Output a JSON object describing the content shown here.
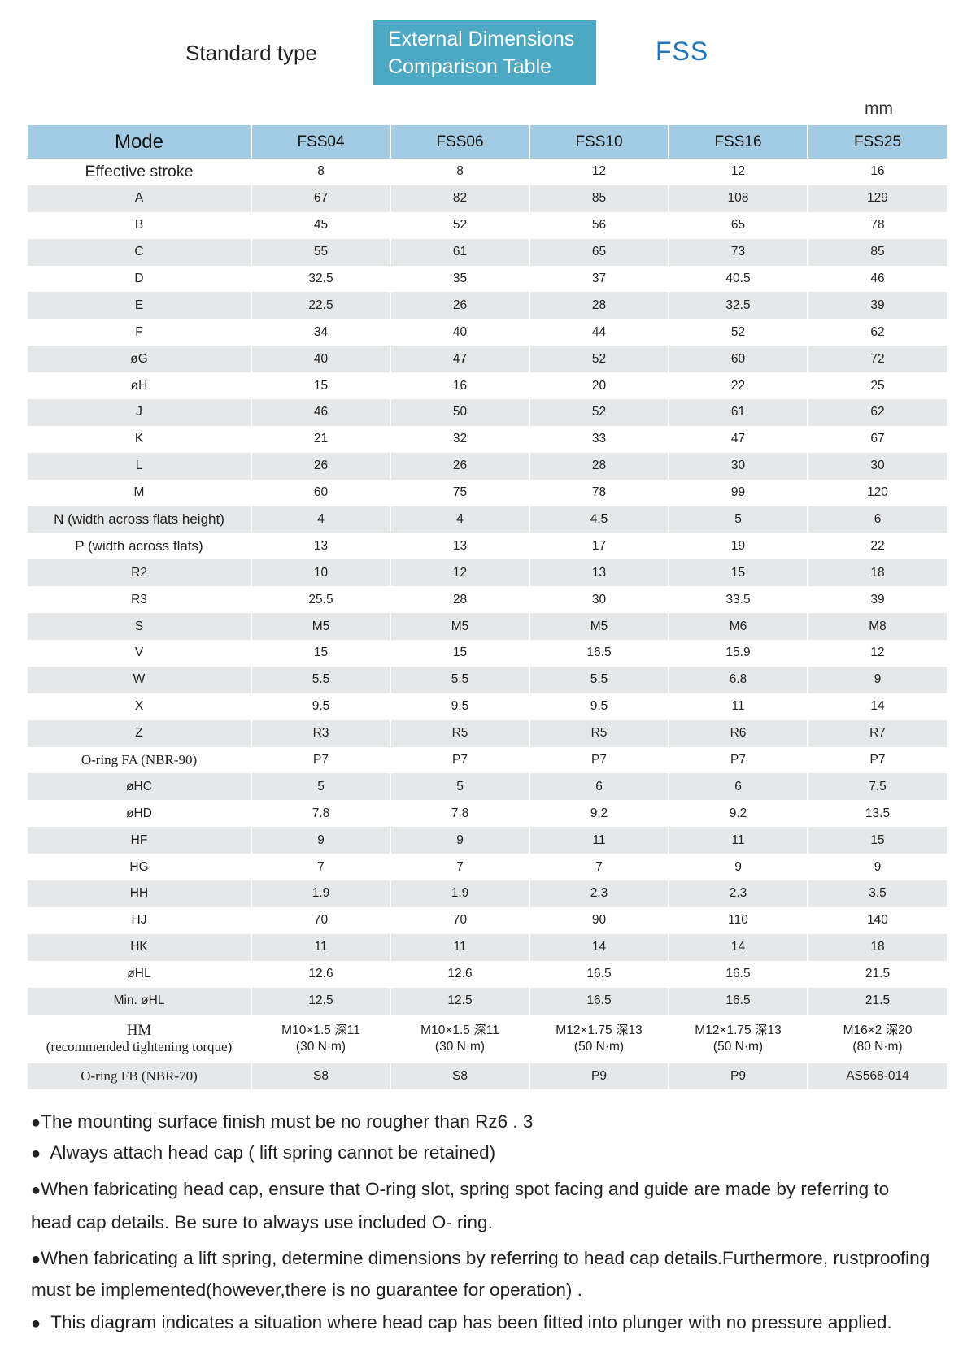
{
  "header": {
    "standard_type": "Standard type",
    "title_line1": "External Dimensions",
    "title_line2": "Comparison Table",
    "series": "FSS",
    "unit": "mm"
  },
  "table": {
    "mode_label": "Mode",
    "columns": [
      "FSS04",
      "FSS06",
      "FSS10",
      "FSS16",
      "FSS25"
    ],
    "rows": [
      {
        "label": "Effective stroke",
        "values": [
          "8",
          "8",
          "12",
          "12",
          "16"
        ]
      },
      {
        "label": "A",
        "values": [
          "67",
          "82",
          "85",
          "108",
          "129"
        ]
      },
      {
        "label": "B",
        "values": [
          "45",
          "52",
          "56",
          "65",
          "78"
        ]
      },
      {
        "label": "C",
        "values": [
          "55",
          "61",
          "65",
          "73",
          "85"
        ]
      },
      {
        "label": "D",
        "values": [
          "32.5",
          "35",
          "37",
          "40.5",
          "46"
        ]
      },
      {
        "label": "E",
        "values": [
          "22.5",
          "26",
          "28",
          "32.5",
          "39"
        ]
      },
      {
        "label": "F",
        "values": [
          "34",
          "40",
          "44",
          "52",
          "62"
        ]
      },
      {
        "label": "øG",
        "values": [
          "40",
          "47",
          "52",
          "60",
          "72"
        ]
      },
      {
        "label": "øH",
        "values": [
          "15",
          "16",
          "20",
          "22",
          "25"
        ]
      },
      {
        "label": "J",
        "values": [
          "46",
          "50",
          "52",
          "61",
          "62"
        ]
      },
      {
        "label": "K",
        "values": [
          "21",
          "32",
          "33",
          "47",
          "67"
        ]
      },
      {
        "label": "L",
        "values": [
          "26",
          "26",
          "28",
          "30",
          "30"
        ]
      },
      {
        "label": "M",
        "values": [
          "60",
          "75",
          "78",
          "99",
          "120"
        ]
      },
      {
        "label": "N (width across flats height)",
        "values": [
          "4",
          "4",
          "4.5",
          "5",
          "6"
        ]
      },
      {
        "label": "P (width across flats)",
        "values": [
          "13",
          "13",
          "17",
          "19",
          "22"
        ]
      },
      {
        "label": "R2",
        "values": [
          "10",
          "12",
          "13",
          "15",
          "18"
        ]
      },
      {
        "label": "R3",
        "values": [
          "25.5",
          "28",
          "30",
          "33.5",
          "39"
        ]
      },
      {
        "label": "S",
        "values": [
          "M5",
          "M5",
          "M5",
          "M6",
          "M8"
        ]
      },
      {
        "label": "V",
        "values": [
          "15",
          "15",
          "16.5",
          "15.9",
          "12"
        ]
      },
      {
        "label": "W",
        "values": [
          "5.5",
          "5.5",
          "5.5",
          "6.8",
          "9"
        ]
      },
      {
        "label": "X",
        "values": [
          "9.5",
          "9.5",
          "9.5",
          "11",
          "14"
        ]
      },
      {
        "label": "Z",
        "values": [
          "R3",
          "R5",
          "R5",
          "R6",
          "R7"
        ]
      },
      {
        "label": "O-ring FA (NBR-90)",
        "values": [
          "P7",
          "P7",
          "P7",
          "P7",
          "P7"
        ]
      },
      {
        "label": "øHC",
        "values": [
          "5",
          "5",
          "6",
          "6",
          "7.5"
        ]
      },
      {
        "label": "øHD",
        "values": [
          "7.8",
          "7.8",
          "9.2",
          "9.2",
          "13.5"
        ]
      },
      {
        "label": "HF",
        "values": [
          "9",
          "9",
          "11",
          "11",
          "15"
        ]
      },
      {
        "label": "HG",
        "values": [
          "7",
          "7",
          "7",
          "9",
          "9"
        ]
      },
      {
        "label": "HH",
        "values": [
          "1.9",
          "1.9",
          "2.3",
          "2.3",
          "3.5"
        ]
      },
      {
        "label": "HJ",
        "values": [
          "70",
          "70",
          "90",
          "110",
          "140"
        ]
      },
      {
        "label": "HK",
        "values": [
          "11",
          "11",
          "14",
          "14",
          "18"
        ]
      },
      {
        "label": "øHL",
        "values": [
          "12.6",
          "12.6",
          "16.5",
          "16.5",
          "21.5"
        ]
      },
      {
        "label": "Min. øHL",
        "values": [
          "12.5",
          "12.5",
          "16.5",
          "16.5",
          "21.5"
        ]
      },
      {
        "label": "HM",
        "label2": "(recommended tightening torque)",
        "values": [
          "M10×1.5 深11",
          "M10×1.5 深11",
          "M12×1.75 深13",
          "M12×1.75 深13",
          "M16×2 深20"
        ],
        "values2": [
          "(30 N·m)",
          "(30 N·m)",
          "(50 N·m)",
          "(50 N·m)",
          "(80 N·m)"
        ]
      },
      {
        "label": "O-ring FB (NBR-70)",
        "values": [
          "S8",
          "S8",
          "P9",
          "P9",
          "AS568-014"
        ]
      }
    ]
  },
  "notes": {
    "bullet": "●",
    "n1": "The mounting surface finish must be no rougher than Rz6 . 3",
    "n2": "Always attach head cap ( lift spring cannot be retained)",
    "n3": "When fabricating head cap, ensure that O-ring slot, spring spot facing and guide are made by referring to head cap details. Be sure to always use included O- ring.",
    "n4": "When fabricating a lift spring, determine dimensions by referring to head cap details.Furthermore, rustproofing must be implemented(however,there is no guarantee for operation) .",
    "n5": "This diagram indicates a situation where head cap has been fitted into plunger with no pressure applied."
  }
}
